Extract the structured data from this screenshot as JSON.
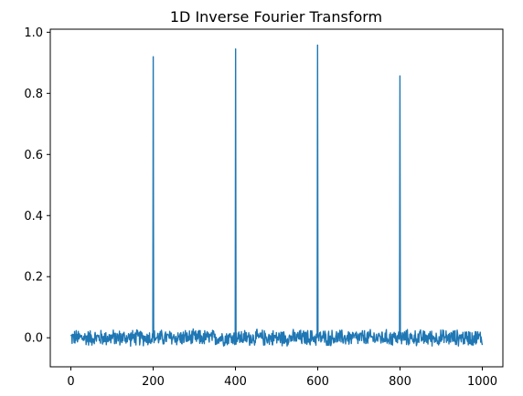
{
  "chart_data": {
    "type": "line",
    "title": "1D Inverse Fourier Transform",
    "xlabel": "",
    "ylabel": "",
    "xlim": [
      -50,
      1050
    ],
    "ylim": [
      -0.095,
      1.01
    ],
    "xticks": [
      0,
      200,
      400,
      600,
      800,
      1000
    ],
    "yticks": [
      0.0,
      0.2,
      0.4,
      0.6,
      0.8,
      1.0
    ],
    "xtick_labels": [
      "0",
      "200",
      "400",
      "600",
      "800",
      "1000"
    ],
    "ytick_labels": [
      "0.0",
      "0.2",
      "0.4",
      "0.6",
      "0.8",
      "1.0"
    ],
    "grid": false,
    "line_color": "#1f77b4",
    "series": [
      {
        "n_points": 1000,
        "x_start": 0,
        "x_end": 1000,
        "baseline": 0.0,
        "noise_amplitude": 0.03,
        "peaks": [
          {
            "x": 200,
            "y": 0.92
          },
          {
            "x": 400,
            "y": 0.945
          },
          {
            "x": 600,
            "y": 0.958
          },
          {
            "x": 800,
            "y": 0.857
          }
        ]
      }
    ]
  }
}
